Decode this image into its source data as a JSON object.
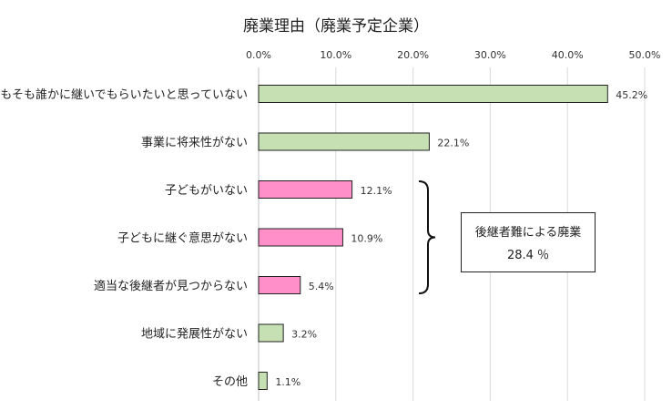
{
  "chart_data": {
    "type": "bar",
    "orientation": "horizontal",
    "title": "廃業理由（廃業予定企業）",
    "xlim": [
      0,
      50
    ],
    "x_ticks": [
      "0.0%",
      "10.0%",
      "20.0%",
      "30.0%",
      "40.0%",
      "50.0%"
    ],
    "x_ticks_position": "top",
    "categories": [
      "そもそも誰かに継いでもらいたいと思っていない",
      "事業に将来性がない",
      "子どもがいない",
      "子どもに継ぐ意思がない",
      "適当な後継者が見つからない",
      "地域に発展性がない",
      "その他"
    ],
    "values": [
      45.2,
      22.1,
      12.1,
      10.9,
      5.4,
      3.2,
      1.1
    ],
    "value_labels": [
      "45.2%",
      "22.1%",
      "12.1%",
      "10.9%",
      "5.4%",
      "3.2%",
      "1.1%"
    ],
    "bar_colors": [
      "#c6e0b4",
      "#c6e0b4",
      "#ff8fc8",
      "#ff8fc8",
      "#ff8fc8",
      "#c6e0b4",
      "#c6e0b4"
    ],
    "gridlines": true,
    "annotation": {
      "line1": "後継者難による廃業",
      "line2": "28.4 ％",
      "bracket_groups": [
        2,
        3,
        4
      ]
    }
  }
}
